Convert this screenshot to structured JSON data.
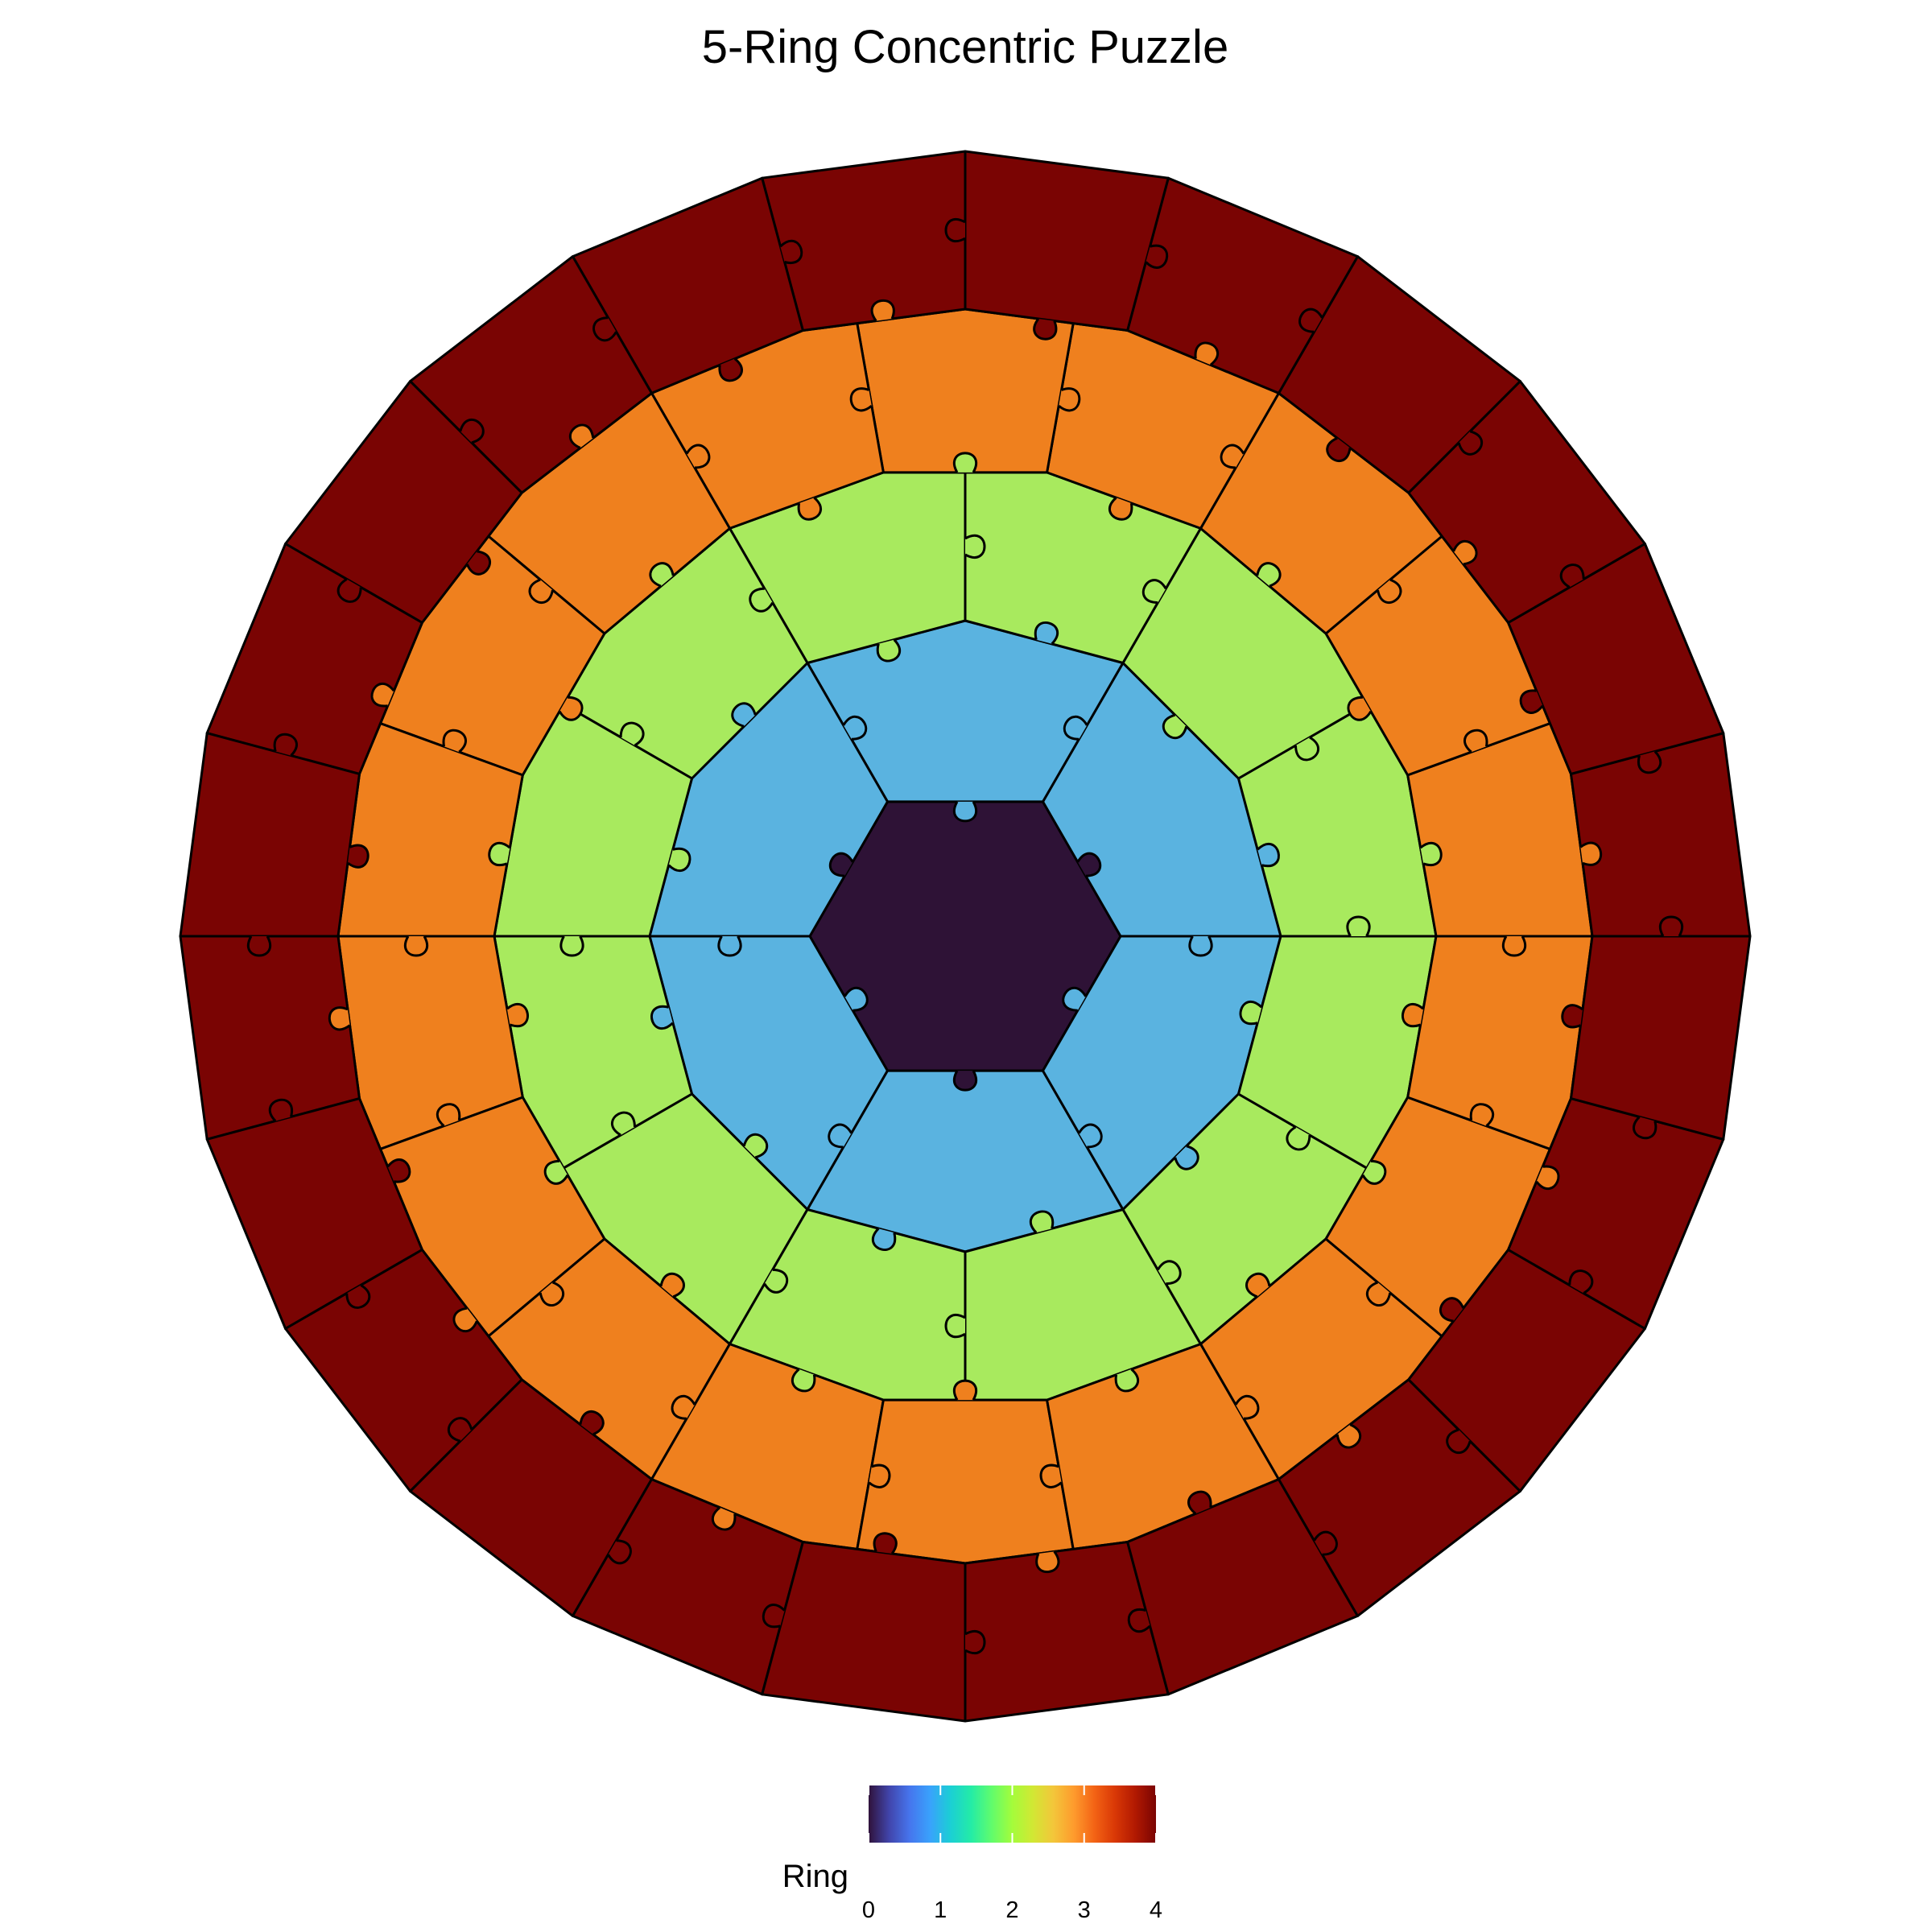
{
  "chart_data": {
    "type": "puzzle",
    "title": "5-Ring Concentric Puzzle",
    "rings": [
      {
        "value": 0,
        "pieces": 1,
        "color": "#2e1236"
      },
      {
        "value": 1,
        "pieces": 6,
        "color": "#5ab3e0"
      },
      {
        "value": 2,
        "pieces": 12,
        "color": "#a8ea5e"
      },
      {
        "value": 3,
        "pieces": 18,
        "color": "#ef801e"
      },
      {
        "value": 4,
        "pieces": 24,
        "color": "#7a0403"
      }
    ],
    "legend": {
      "title": "Ring",
      "lim": [
        0,
        4
      ],
      "ticks": [
        0,
        1,
        2,
        3,
        4
      ],
      "colorscale": [
        "#30123b",
        "#4145ab",
        "#4675ed",
        "#39a2fc",
        "#1bcfd4",
        "#24eca6",
        "#61fc6c",
        "#a4fc3b",
        "#d1e834",
        "#f3c63a",
        "#fe9b2d",
        "#f36315",
        "#d93806",
        "#b11901",
        "#7a0403"
      ]
    }
  }
}
